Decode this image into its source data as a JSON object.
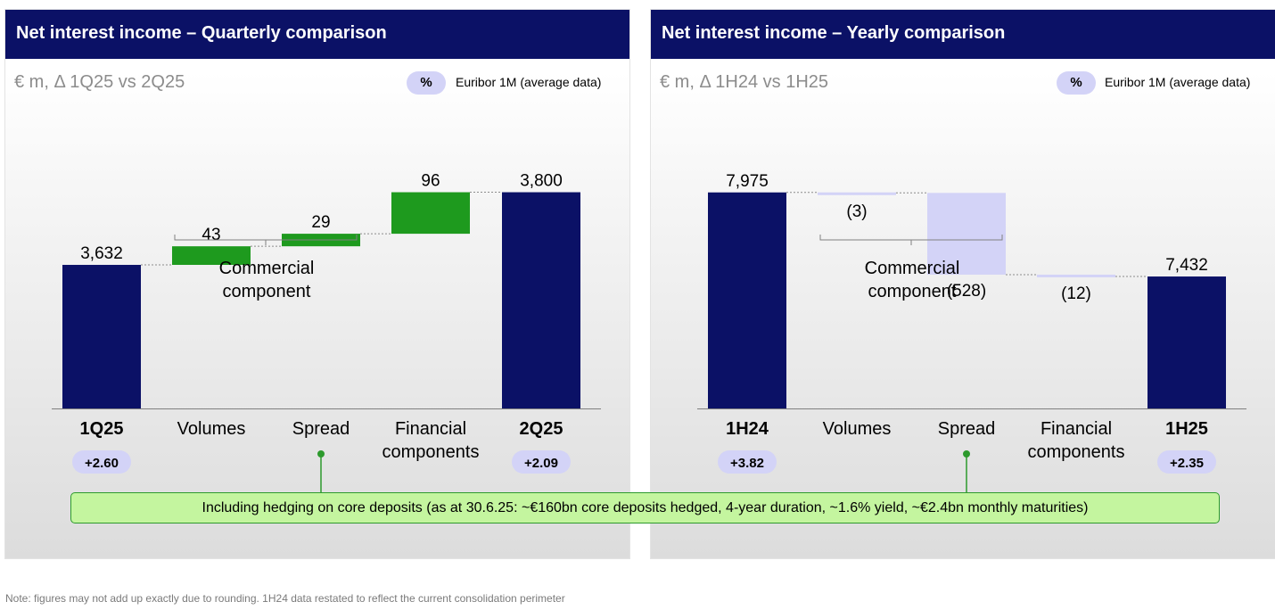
{
  "colors": {
    "header": "#0b1166",
    "bar_total": "#0b1166",
    "bar_positive": "#1e9a1e",
    "bar_negative": "#d3d3f7",
    "pill": "#d3d3f7",
    "callout_bg": "#c4f59f",
    "callout_border": "#2d9a2d",
    "connector": "#8c8c8c"
  },
  "pct_symbol": "%",
  "euribor_note": "Euribor 1M (average data)",
  "commercial_label": [
    "Commercial",
    "component"
  ],
  "callout": "Including hedging on core deposits (as at 30.6.25: ~€160bn core deposits hedged, 4-year duration, ~1.6% yield, ~€2.4bn monthly maturities)",
  "footnote": "Note: figures may not add up exactly due to rounding. 1H24 data restated to reflect the current consolidation perimeter",
  "chart_data": [
    {
      "type": "waterfall",
      "title": "Net interest income – Quarterly comparison",
      "subtitle": "€ m, Δ 1Q25 vs 2Q25",
      "scale": [
        3300,
        3830
      ],
      "categories": [
        [
          "1Q25"
        ],
        [
          "Volumes"
        ],
        [
          "Spread"
        ],
        [
          "Financial",
          "components"
        ],
        [
          "2Q25"
        ]
      ],
      "bold_categories": [
        true,
        false,
        false,
        false,
        true
      ],
      "kinds": [
        "total",
        "delta",
        "delta",
        "delta",
        "total"
      ],
      "values": [
        3632,
        43,
        29,
        96,
        3800
      ],
      "labels": [
        "3,632",
        "43",
        "29",
        "96",
        "3,800"
      ],
      "euribor": [
        {
          "category": "1Q25",
          "value": "+2.60"
        },
        {
          "category": "2Q25",
          "value": "+2.09"
        }
      ]
    },
    {
      "type": "waterfall",
      "title": "Net interest income – Yearly comparison",
      "subtitle": "€ m, Δ 1H24 vs 1H25",
      "scale": [
        6580,
        8060
      ],
      "categories": [
        [
          "1H24"
        ],
        [
          "Volumes"
        ],
        [
          "Spread"
        ],
        [
          "Financial",
          "components"
        ],
        [
          "1H25"
        ]
      ],
      "bold_categories": [
        true,
        false,
        false,
        false,
        true
      ],
      "kinds": [
        "total",
        "delta",
        "delta",
        "delta",
        "total"
      ],
      "values": [
        7975,
        -3,
        -528,
        -12,
        7432
      ],
      "labels": [
        "7,975",
        "(3)",
        "(528)",
        "(12)",
        "7,432"
      ],
      "euribor": [
        {
          "category": "1H24",
          "value": "+3.82"
        },
        {
          "category": "1H25",
          "value": "+2.35"
        }
      ]
    }
  ]
}
